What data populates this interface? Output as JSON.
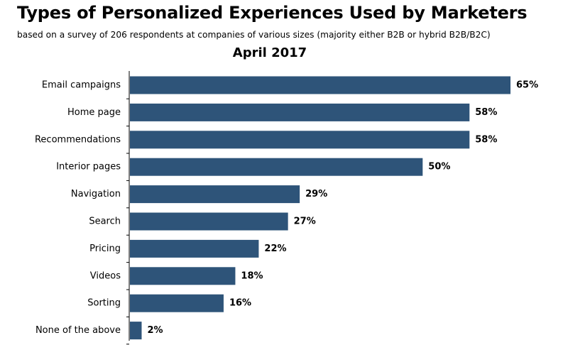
{
  "title": "Types of Personalized Experiences Used by Marketers",
  "subtitle": "based on a survey of 206 respondents at companies of various sizes (majority either B2B or hybrid B2B/B2C)",
  "period": "April 2017",
  "colors": {
    "bar": "#2e5479",
    "axis": "#000000"
  },
  "chart_data": {
    "type": "bar",
    "orientation": "horizontal",
    "title": "Types of Personalized Experiences Used by Marketers",
    "subtitle": "based on a survey of 206 respondents at companies of various sizes (majority either B2B or hybrid B2B/B2C)",
    "categories": [
      "Email campaigns",
      "Home page",
      "Recommendations",
      "Interior pages",
      "Navigation",
      "Search",
      "Pricing",
      "Videos",
      "Sorting",
      "None of the above"
    ],
    "values": [
      65,
      58,
      58,
      50,
      29,
      27,
      22,
      18,
      16,
      2
    ],
    "value_labels": [
      "65%",
      "58%",
      "58%",
      "50%",
      "29%",
      "27%",
      "22%",
      "18%",
      "16%",
      "2%"
    ],
    "xlim": [
      0,
      65
    ],
    "grid": false,
    "legend": "none"
  }
}
